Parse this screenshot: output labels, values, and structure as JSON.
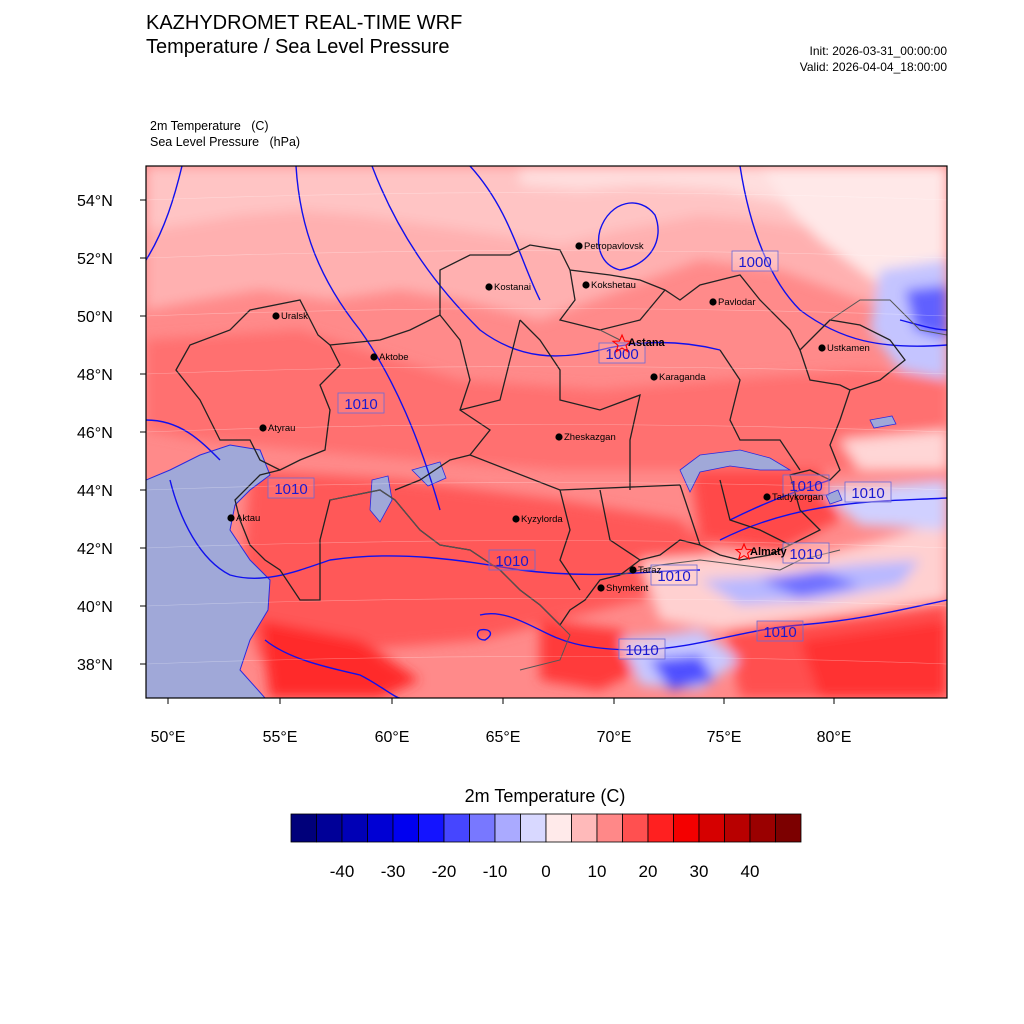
{
  "header": {
    "title_line1": "KAZHYDROMET REAL-TIME WRF",
    "title_line2": "Temperature / Sea Level Pressure",
    "init": "Init: 2026-03-31_00:00:00",
    "valid": "Valid: 2026-04-04_18:00:00",
    "var1": "2m Temperature   (C)",
    "var2": "Sea Level Pressure   (hPa)"
  },
  "axes": {
    "lat_labels": [
      "54°N",
      "52°N",
      "50°N",
      "48°N",
      "46°N",
      "44°N",
      "42°N",
      "40°N",
      "38°N"
    ],
    "lon_labels": [
      "50°E",
      "55°E",
      "60°E",
      "65°E",
      "70°E",
      "75°E",
      "80°E"
    ]
  },
  "cities": [
    {
      "name": "Petropavlovsk",
      "bold": false
    },
    {
      "name": "Kostanai",
      "bold": false
    },
    {
      "name": "Kokshetau",
      "bold": false
    },
    {
      "name": "Pavlodar",
      "bold": false
    },
    {
      "name": "Uralsk",
      "bold": false
    },
    {
      "name": "Aktobe",
      "bold": false
    },
    {
      "name": "Astana",
      "bold": true
    },
    {
      "name": "Karaganda",
      "bold": false
    },
    {
      "name": "Ustkamen",
      "bold": false
    },
    {
      "name": "Atyrau",
      "bold": false
    },
    {
      "name": "Zheskazgan",
      "bold": false
    },
    {
      "name": "Aktau",
      "bold": false
    },
    {
      "name": "Kyzylorda",
      "bold": false
    },
    {
      "name": "Taldykorgan",
      "bold": false
    },
    {
      "name": "Almaty",
      "bold": true
    },
    {
      "name": "Taraz",
      "bold": false
    },
    {
      "name": "Shymkent",
      "bold": false
    }
  ],
  "contour_labels": [
    "1000",
    "1000",
    "1010",
    "1010",
    "1010",
    "1010",
    "1010",
    "1010",
    "1010",
    "1010",
    "1010"
  ],
  "colorbar": {
    "title": "2m Temperature  (C)",
    "colors": [
      "#00007a",
      "#000098",
      "#0000b6",
      "#0000d4",
      "#0000f0",
      "#1414ff",
      "#4646ff",
      "#7878ff",
      "#aaaaff",
      "#d8d8ff",
      "#ffeaea",
      "#ffbaba",
      "#ff8888",
      "#ff5050",
      "#ff2020",
      "#f40000",
      "#d60000",
      "#b80000",
      "#9a0000",
      "#7c0000"
    ],
    "ticks": [
      "-40",
      "-30",
      "-20",
      "-10",
      "0",
      "10",
      "20",
      "30",
      "40"
    ]
  }
}
